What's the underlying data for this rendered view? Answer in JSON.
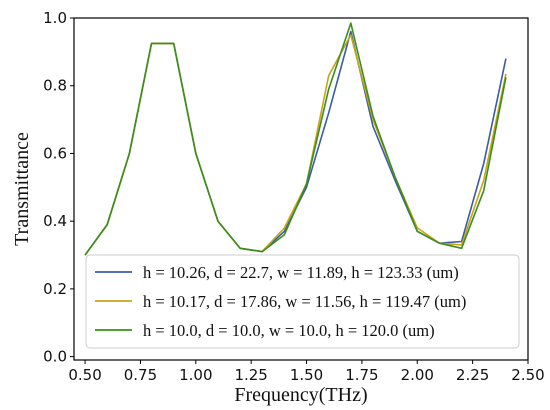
{
  "chart_data": {
    "type": "line",
    "xlabel": "Frequency(THz)",
    "ylabel": "Transmittance",
    "xlim": [
      0.45,
      2.5
    ],
    "ylim": [
      -0.01,
      1.0
    ],
    "xticks": [
      0.5,
      0.75,
      1.0,
      1.25,
      1.5,
      1.75,
      2.0,
      2.25,
      2.5
    ],
    "xtick_labels": [
      "0.50",
      "0.75",
      "1.00",
      "1.25",
      "1.50",
      "1.75",
      "2.00",
      "2.25",
      "2.50"
    ],
    "yticks": [
      0.0,
      0.2,
      0.4,
      0.6,
      0.8,
      1.0
    ],
    "ytick_labels": [
      "0.0",
      "0.2",
      "0.4",
      "0.6",
      "0.8",
      "1.0"
    ],
    "grid": false,
    "legend_position": "lower-right",
    "x": [
      0.5,
      0.6,
      0.7,
      0.8,
      0.9,
      1.0,
      1.1,
      1.2,
      1.3,
      1.4,
      1.5,
      1.6,
      1.7,
      1.8,
      1.9,
      2.0,
      2.1,
      2.2,
      2.3,
      2.4
    ],
    "series": [
      {
        "name": "h = 10.26, d = 22.7, w = 11.89, h = 123.33 (um)",
        "color": "#3a5ba8",
        "values": [
          0.3,
          0.39,
          0.6,
          0.925,
          0.925,
          0.6,
          0.4,
          0.32,
          0.31,
          0.37,
          0.5,
          0.72,
          0.96,
          0.68,
          0.52,
          0.37,
          0.335,
          0.34,
          0.57,
          0.88
        ]
      },
      {
        "name": "h = 10.17, d = 17.86, w = 11.56, h = 119.47 (um)",
        "color": "#c8a418",
        "values": [
          0.3,
          0.39,
          0.6,
          0.925,
          0.925,
          0.6,
          0.4,
          0.32,
          0.31,
          0.38,
          0.51,
          0.83,
          0.95,
          0.7,
          0.53,
          0.38,
          0.335,
          0.33,
          0.52,
          0.835
        ]
      },
      {
        "name": "h = 10.0, d = 10.0, w = 10.0, h = 120.0 (um)",
        "color": "#3a8f1c",
        "values": [
          0.3,
          0.39,
          0.6,
          0.925,
          0.925,
          0.6,
          0.4,
          0.32,
          0.31,
          0.36,
          0.51,
          0.79,
          0.985,
          0.71,
          0.53,
          0.37,
          0.335,
          0.32,
          0.49,
          0.825
        ]
      }
    ]
  }
}
